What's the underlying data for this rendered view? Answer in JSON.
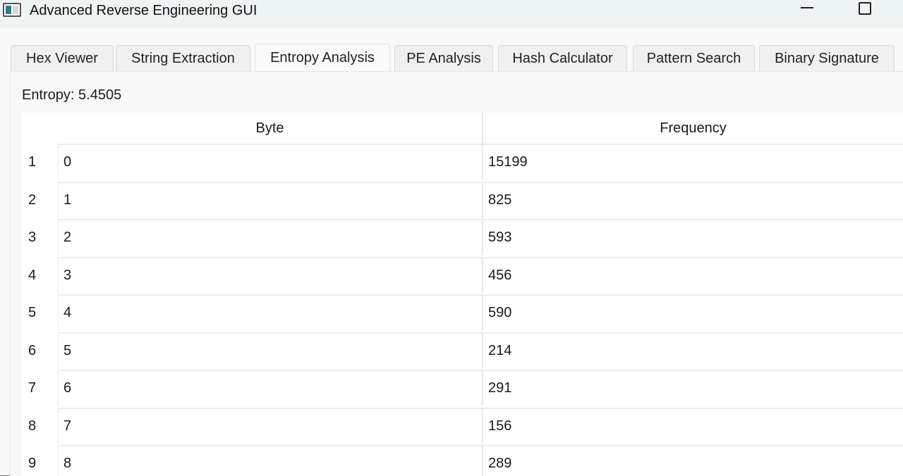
{
  "window": {
    "title": "Advanced Reverse Engineering GUI"
  },
  "tabs": [
    {
      "label": "Hex Viewer"
    },
    {
      "label": "String Extraction"
    },
    {
      "label": "Entropy Analysis",
      "active": true
    },
    {
      "label": "PE Analysis"
    },
    {
      "label": "Hash Calculator"
    },
    {
      "label": "Pattern Search"
    },
    {
      "label": "Binary Signature"
    }
  ],
  "entropy": {
    "label": "Entropy: 5.4505"
  },
  "table": {
    "columns": [
      "Byte",
      "Frequency"
    ],
    "rows": [
      {
        "num": "1",
        "byte": "0",
        "freq": "15199"
      },
      {
        "num": "2",
        "byte": "1",
        "freq": "825"
      },
      {
        "num": "3",
        "byte": "2",
        "freq": "593"
      },
      {
        "num": "4",
        "byte": "3",
        "freq": "456"
      },
      {
        "num": "5",
        "byte": "4",
        "freq": "590"
      },
      {
        "num": "6",
        "byte": "5",
        "freq": "214"
      },
      {
        "num": "7",
        "byte": "6",
        "freq": "291"
      },
      {
        "num": "8",
        "byte": "7",
        "freq": "156"
      },
      {
        "num": "9",
        "byte": "8",
        "freq": "289"
      }
    ]
  }
}
